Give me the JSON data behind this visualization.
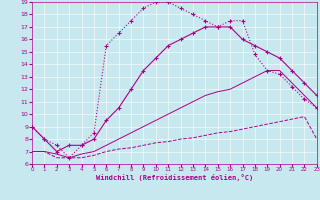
{
  "xlabel": "Windchill (Refroidissement éolien,°C)",
  "bg_color": "#c8e8f0",
  "line_color": "#aa0088",
  "xlim": [
    0,
    23
  ],
  "ylim": [
    6,
    19
  ],
  "xticks": [
    0,
    1,
    2,
    3,
    4,
    5,
    6,
    7,
    8,
    9,
    10,
    11,
    12,
    13,
    14,
    15,
    16,
    17,
    18,
    19,
    20,
    21,
    22,
    23
  ],
  "yticks": [
    6,
    7,
    8,
    9,
    10,
    11,
    12,
    13,
    14,
    15,
    16,
    17,
    18,
    19
  ],
  "curve_solid_x": [
    0,
    1,
    2,
    3,
    4,
    5,
    6,
    7,
    8,
    9,
    10,
    11,
    12,
    13,
    14,
    15,
    16,
    17,
    18,
    19,
    20,
    21,
    22,
    23
  ],
  "curve_solid_y": [
    9.0,
    8.0,
    7.0,
    7.5,
    7.5,
    8.0,
    9.5,
    10.5,
    12.0,
    13.5,
    14.5,
    15.5,
    16.0,
    16.5,
    17.0,
    17.0,
    17.0,
    16.0,
    15.5,
    15.0,
    14.5,
    13.5,
    12.5,
    11.5
  ],
  "curve_dotted_x": [
    0,
    1,
    2,
    3,
    4,
    5,
    6,
    7,
    8,
    9,
    10,
    11,
    12,
    13,
    14,
    15,
    16,
    17,
    18,
    19,
    20,
    21,
    22,
    23
  ],
  "curve_dotted_y": [
    9.0,
    8.0,
    7.5,
    6.5,
    7.5,
    8.5,
    15.5,
    16.5,
    17.5,
    18.5,
    19.0,
    19.0,
    18.5,
    18.0,
    17.5,
    17.0,
    17.5,
    17.5,
    14.8,
    13.5,
    13.2,
    12.2,
    11.2,
    10.5
  ],
  "line_flat_x": [
    0,
    1,
    2,
    3,
    4,
    5,
    6,
    7,
    8,
    9,
    10,
    11,
    12,
    13,
    14,
    15,
    16,
    17,
    18,
    19,
    20,
    21,
    22,
    23
  ],
  "line_flat_y": [
    7.0,
    7.0,
    6.5,
    6.5,
    6.5,
    6.7,
    7.0,
    7.2,
    7.3,
    7.5,
    7.7,
    7.8,
    8.0,
    8.1,
    8.3,
    8.5,
    8.6,
    8.8,
    9.0,
    9.2,
    9.4,
    9.6,
    9.8,
    8.0
  ],
  "line_rise_x": [
    0,
    1,
    2,
    3,
    4,
    5,
    6,
    7,
    8,
    9,
    10,
    11,
    12,
    13,
    14,
    15,
    16,
    17,
    18,
    19,
    20,
    21,
    22,
    23
  ],
  "line_rise_y": [
    7.0,
    7.0,
    6.8,
    6.5,
    6.8,
    7.0,
    7.5,
    8.0,
    8.5,
    9.0,
    9.5,
    10.0,
    10.5,
    11.0,
    11.5,
    11.8,
    12.0,
    12.5,
    13.0,
    13.5,
    13.5,
    12.5,
    11.5,
    10.5
  ]
}
